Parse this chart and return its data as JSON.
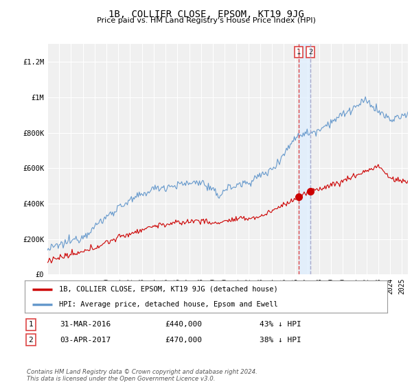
{
  "title": "1B, COLLIER CLOSE, EPSOM, KT19 9JG",
  "subtitle": "Price paid vs. HM Land Registry's House Price Index (HPI)",
  "legend_label_red": "1B, COLLIER CLOSE, EPSOM, KT19 9JG (detached house)",
  "legend_label_blue": "HPI: Average price, detached house, Epsom and Ewell",
  "transaction1_date": "31-MAR-2016",
  "transaction1_price": 440000,
  "transaction1_pct": "43% ↓ HPI",
  "transaction2_date": "03-APR-2017",
  "transaction2_price": 470000,
  "transaction2_pct": "38% ↓ HPI",
  "footer": "Contains HM Land Registry data © Crown copyright and database right 2024.\nThis data is licensed under the Open Government Licence v3.0.",
  "ylim": [
    0,
    1300000
  ],
  "yticks": [
    0,
    200000,
    400000,
    600000,
    800000,
    1000000,
    1200000
  ],
  "ytick_labels": [
    "£0",
    "£200K",
    "£400K",
    "£600K",
    "£800K",
    "£1M",
    "£1.2M"
  ],
  "color_red": "#cc0000",
  "color_blue": "#6699cc",
  "color_vline1": "#dd4444",
  "color_vline2": "#aaaacc",
  "color_shade": "#ddeeff",
  "bg_plot": "#f0f0f0",
  "transaction1_year": 2016.25,
  "transaction2_year": 2017.27,
  "xmin": 1995,
  "xmax": 2025.5
}
